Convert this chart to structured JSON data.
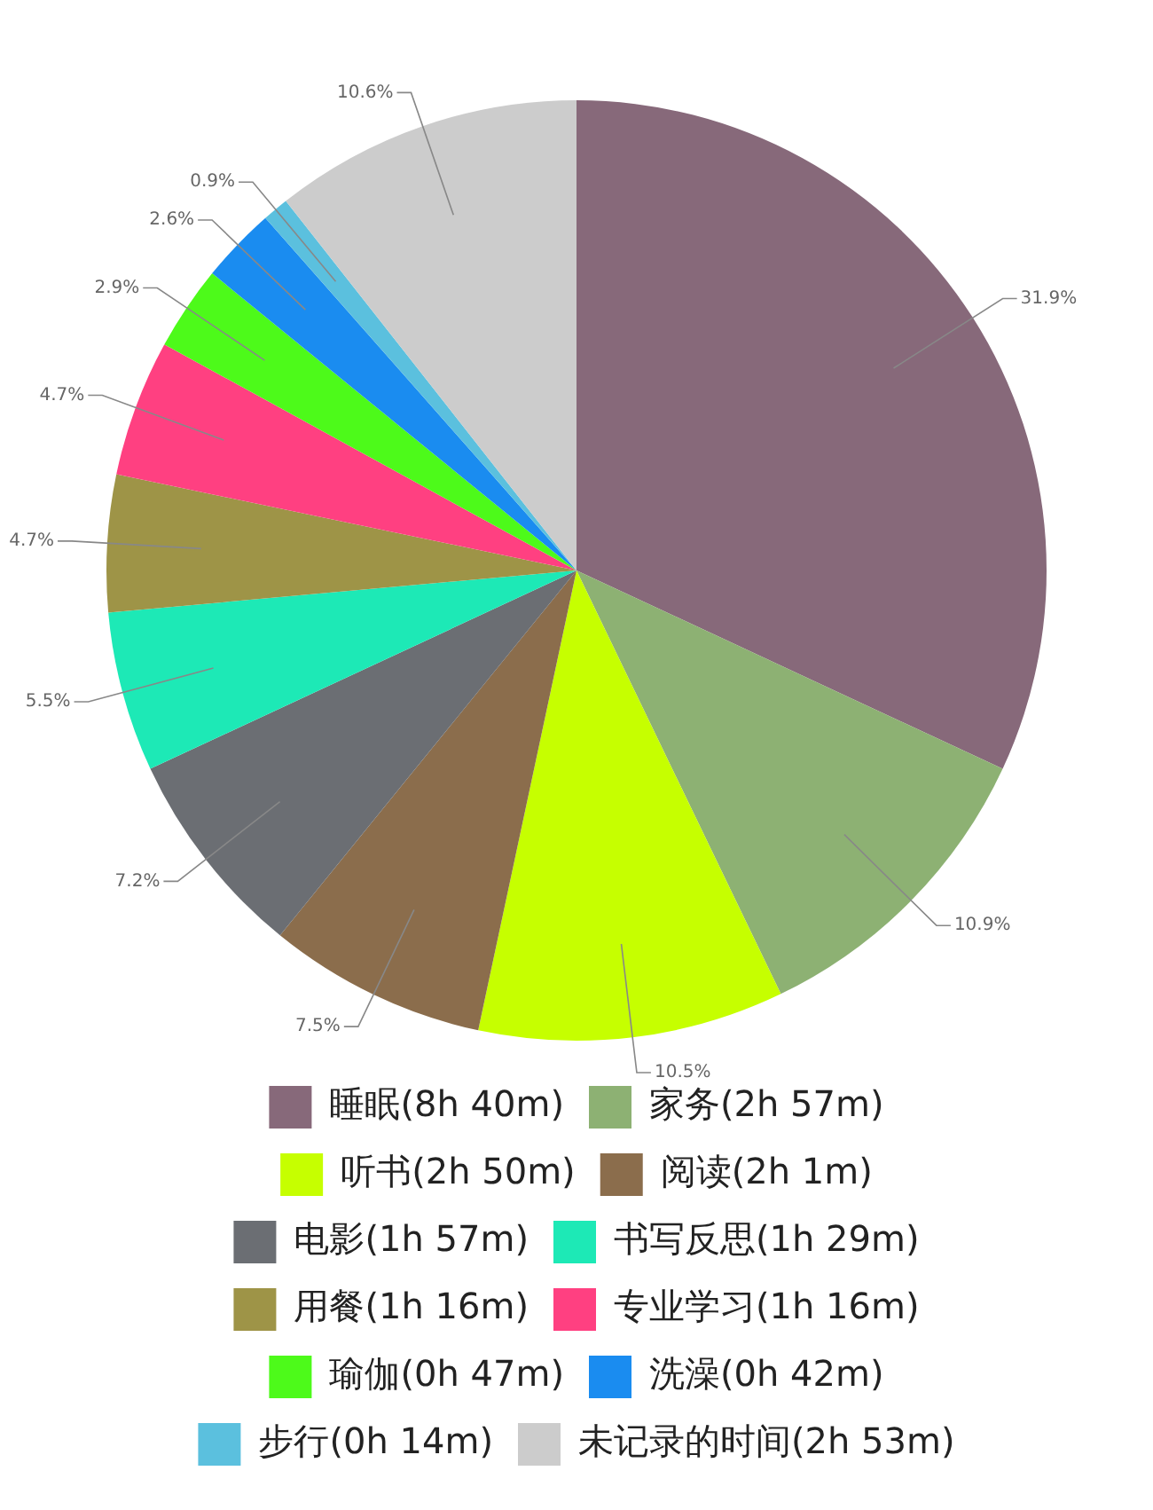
{
  "chart_data": {
    "type": "pie",
    "categories": [
      "睡眠(8h 40m)",
      "家务(2h 57m)",
      "听书(2h 50m)",
      "阅读(2h 1m)",
      "电影(1h 57m)",
      "书写反思(1h 29m)",
      "用餐(1h 16m)",
      "专业学习(1h 16m)",
      "瑜伽(0h 47m)",
      "洗澡(0h 42m)",
      "步行(0h 14m)",
      "未记录的时间(2h 53m)"
    ],
    "values": [
      31.9,
      10.9,
      10.5,
      7.5,
      7.2,
      5.5,
      4.7,
      4.7,
      2.9,
      2.6,
      0.9,
      10.6
    ],
    "value_labels": [
      "31.9%",
      "10.9%",
      "10.5%",
      "7.5%",
      "7.2%",
      "5.5%",
      "4.7%",
      "4.7%",
      "2.9%",
      "2.6%",
      "0.9%",
      "10.6%"
    ],
    "colors": [
      "#87697a",
      "#8db173",
      "#c6ff00",
      "#8b6d4c",
      "#6b6e73",
      "#1de9b6",
      "#9e9447",
      "#ff4081",
      "#4dfa1a",
      "#1a8cf0",
      "#5bc0de",
      "#cccccc"
    ],
    "legend": "bottom"
  }
}
